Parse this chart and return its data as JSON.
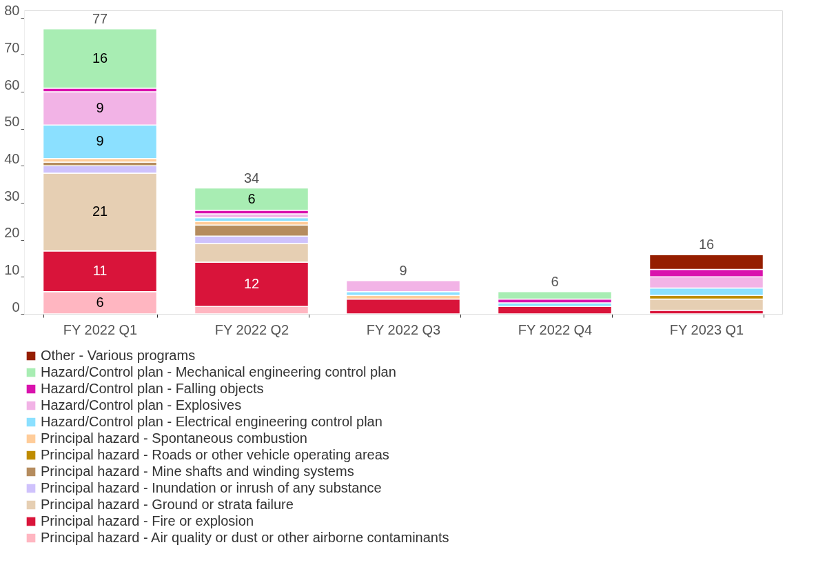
{
  "chart_data": {
    "type": "bar",
    "stacked": true,
    "categories": [
      "FY 2022 Q1",
      "FY 2022 Q2",
      "FY 2022 Q3",
      "FY 2022 Q4",
      "FY 2023 Q1"
    ],
    "ylim": [
      0,
      82
    ],
    "yticks": [
      0,
      10,
      20,
      30,
      40,
      50,
      60,
      70,
      80
    ],
    "grid": false,
    "legend": "bottom",
    "totals": [
      "77",
      "34",
      "9",
      "6",
      "16"
    ],
    "series": [
      {
        "name": "Principal hazard - Air quality or dust or other airborne contaminants",
        "color": "#ffb6c1",
        "values": [
          6,
          2,
          0,
          0,
          0
        ],
        "value_labels": [
          "6",
          null,
          null,
          null,
          null
        ]
      },
      {
        "name": "Principal hazard - Fire or explosion",
        "color": "#d9143a",
        "values": [
          11,
          12,
          4,
          2,
          1
        ],
        "value_labels": [
          "11",
          "12",
          null,
          null,
          null
        ]
      },
      {
        "name": "Principal hazard - Ground or strata failure",
        "color": "#e6cfb3",
        "values": [
          21,
          5,
          0,
          0,
          3
        ],
        "value_labels": [
          "21",
          null,
          null,
          null,
          null
        ]
      },
      {
        "name": "Principal hazard - Inundation or inrush of any substance",
        "color": "#cfc2fc",
        "values": [
          2,
          2,
          0,
          0,
          0
        ],
        "value_labels": [
          null,
          null,
          null,
          null,
          null
        ]
      },
      {
        "name": "Principal hazard - Mine shafts and winding systems",
        "color": "#b58c5e",
        "values": [
          1,
          3,
          0,
          0,
          0
        ],
        "value_labels": [
          null,
          null,
          null,
          null,
          null
        ]
      },
      {
        "name": "Principal hazard - Roads or other vehicle operating areas",
        "color": "#bf8c00",
        "values": [
          0,
          0,
          0,
          0,
          1
        ],
        "value_labels": [
          null,
          null,
          null,
          null,
          null
        ]
      },
      {
        "name": "Principal hazard - Spontaneous combustion",
        "color": "#ffcc99",
        "values": [
          1,
          1,
          1,
          0,
          0
        ],
        "value_labels": [
          null,
          null,
          null,
          null,
          null
        ]
      },
      {
        "name": "Hazard/Control plan - Electrical engineering control plan",
        "color": "#8be0ff",
        "values": [
          9,
          1,
          1,
          1,
          2
        ],
        "value_labels": [
          "9",
          null,
          null,
          null,
          null
        ]
      },
      {
        "name": "Hazard/Control plan - Explosives",
        "color": "#f2b3e6",
        "values": [
          9,
          1,
          3,
          0,
          3
        ],
        "value_labels": [
          "9",
          null,
          null,
          null,
          null
        ]
      },
      {
        "name": "Hazard/Control plan - Falling objects",
        "color": "#d912ad",
        "values": [
          1,
          1,
          0,
          1,
          2
        ],
        "value_labels": [
          null,
          null,
          null,
          null,
          null
        ]
      },
      {
        "name": "Hazard/Control plan - Mechanical engineering control plan",
        "color": "#a8edb3",
        "values": [
          16,
          6,
          0,
          2,
          0
        ],
        "value_labels": [
          "16",
          "6",
          null,
          null,
          null
        ]
      },
      {
        "name": "Other - Various programs",
        "color": "#951e00",
        "values": [
          0,
          0,
          0,
          0,
          4
        ],
        "value_labels": [
          null,
          null,
          null,
          null,
          null
        ]
      }
    ]
  }
}
